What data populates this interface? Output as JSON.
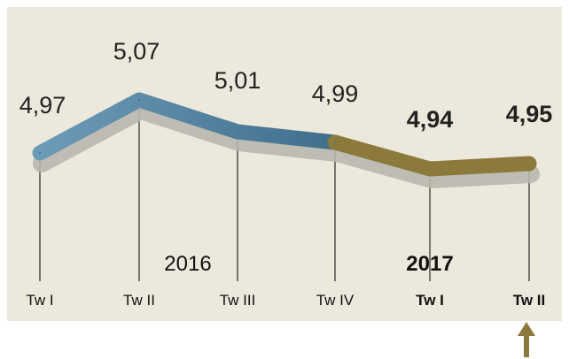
{
  "chart_data": {
    "type": "line",
    "categories": [
      "Tw I",
      "Tw II",
      "Tw III",
      "Tw IV",
      "Tw I",
      "Tw II"
    ],
    "values": [
      4.97,
      5.07,
      5.01,
      4.99,
      4.94,
      4.95
    ],
    "value_labels": [
      "4,97",
      "5,07",
      "5,01",
      "4,99",
      "4,94",
      "4,95"
    ],
    "year_labels": [
      "2016",
      "2017"
    ],
    "ylim": [
      4.9,
      5.1
    ],
    "colors": {
      "background": "#ece8db",
      "line_2016": "#3f6f8c",
      "line_2016_light": "#6c9bb8",
      "line_2017": "#8b7a3c",
      "shadow": "#b9b7ae",
      "arrow": "#8b7a3c"
    }
  }
}
